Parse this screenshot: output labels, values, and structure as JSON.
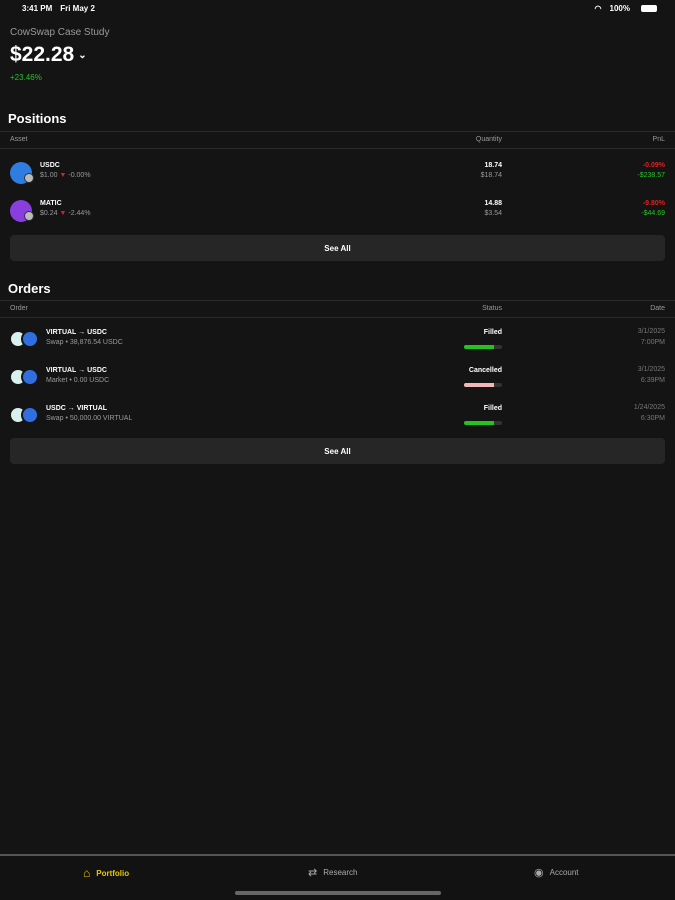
{
  "status": {
    "time": "3:41 PM",
    "date": "Fri May 2",
    "battery": "100%"
  },
  "account": {
    "name": "CowSwap Case Study",
    "balance": "$22.28",
    "change": "+23.46%"
  },
  "positions": {
    "title": "Positions",
    "headers": [
      "Asset",
      "Quantity",
      "PnL"
    ],
    "rows": [
      {
        "symbol": "USDC",
        "price": "$1.00",
        "change": "-0.00%",
        "qty": "18.74",
        "value": "$18.74",
        "pnl_pct": "-0.09%",
        "pnl_abs": "-$238.57",
        "color": "#2f7de0"
      },
      {
        "symbol": "MATIC",
        "price": "$0.24",
        "change": "-2.44%",
        "qty": "14.88",
        "value": "$3.54",
        "pnl_pct": "-9.80%",
        "pnl_abs": "-$44.69",
        "color": "#8a3ee0"
      }
    ],
    "see_all": "See All"
  },
  "orders": {
    "title": "Orders",
    "headers": [
      "Order",
      "Status",
      "Date"
    ],
    "rows": [
      {
        "pair": "VIRTUAL → USDC",
        "detail": "Swap • 38,876.54 USDC",
        "status": "Filled",
        "progress": 0.8,
        "bar_color": "#22c422",
        "date": "3/1/2025",
        "time": "7:00PM"
      },
      {
        "pair": "VIRTUAL → USDC",
        "detail": "Market • 0.00 USDC",
        "status": "Cancelled",
        "progress": 0.8,
        "bar_color": "#f2b8b8",
        "date": "3/1/2025",
        "time": "6:39PM"
      },
      {
        "pair": "USDC → VIRTUAL",
        "detail": "Swap • 50,000.00 VIRTUAL",
        "status": "Filled",
        "progress": 0.8,
        "bar_color": "#22c422",
        "date": "1/24/2025",
        "time": "6:30PM"
      }
    ],
    "see_all": "See All"
  },
  "tabs": [
    {
      "label": "Portfolio",
      "icon": "home-icon",
      "active": true
    },
    {
      "label": "Research",
      "icon": "arrows-icon"
    },
    {
      "label": "Account",
      "icon": "person-circle-icon"
    }
  ],
  "colors": {
    "accent": "#e8c800",
    "positive": "#2bc02b",
    "negative": "#e02020"
  }
}
